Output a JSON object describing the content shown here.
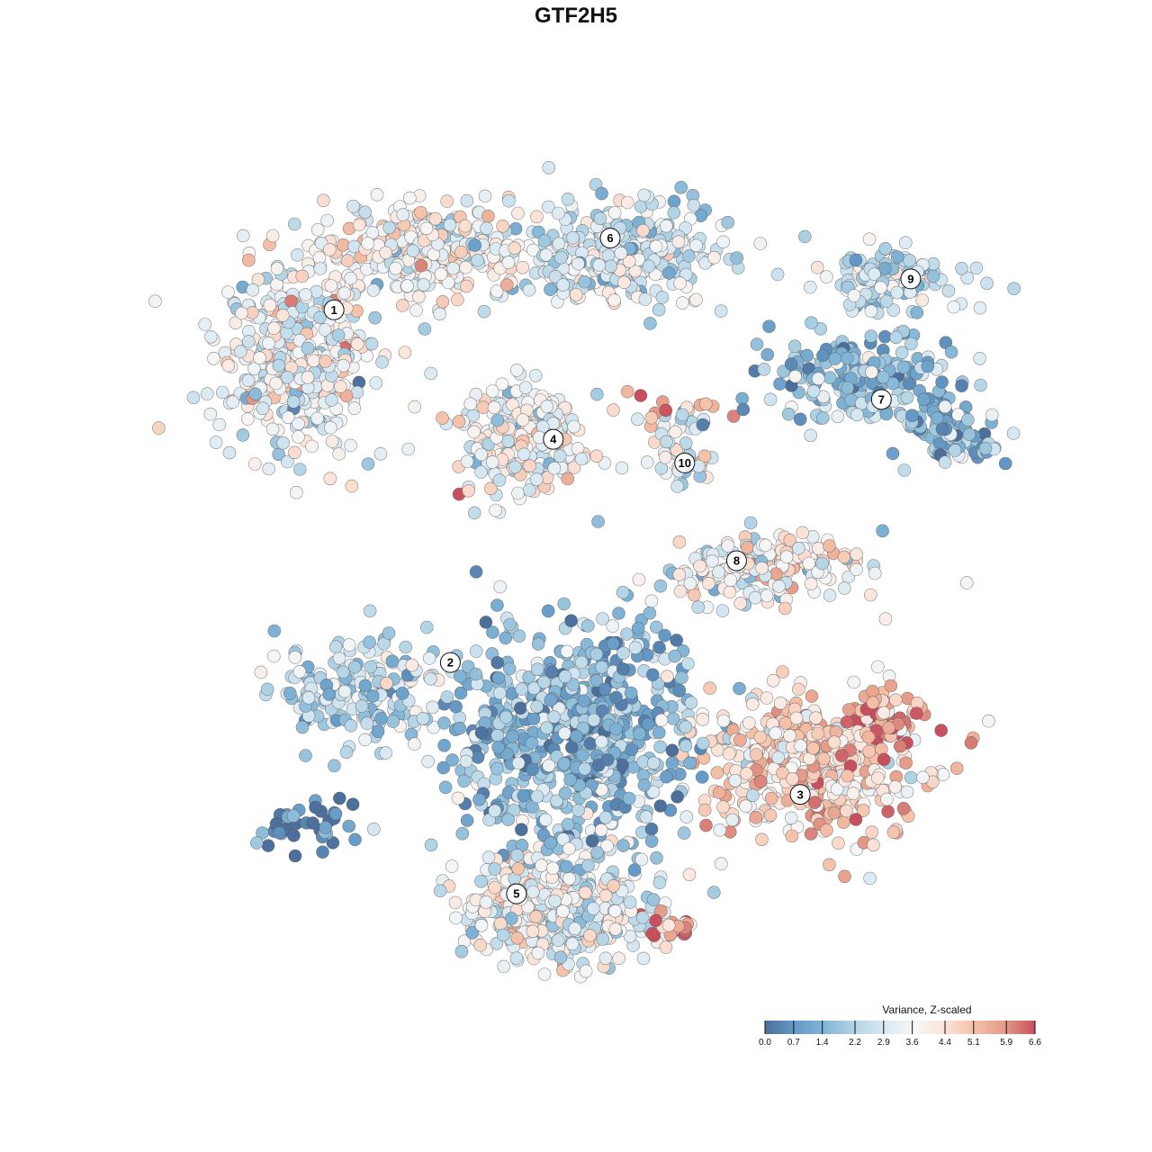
{
  "chart_data": {
    "type": "scatter",
    "title": "GTF2H5",
    "xlabel": "",
    "ylabel": "",
    "xlim": [
      -50,
      50
    ],
    "ylim": [
      -50,
      50
    ],
    "grid": false,
    "legend": {
      "title": "Variance, Z-scaled",
      "position": "bottom-right",
      "range": [
        0,
        6.6
      ],
      "ticks": [
        "0.0",
        "0.7",
        "1.4",
        "2.2",
        "2.9",
        "3.6",
        "4.4",
        "5.1",
        "5.9",
        "6.6"
      ],
      "colors": [
        "#4d6f9c",
        "#6499c6",
        "#83b6d6",
        "#b4d5e6",
        "#dae9f2",
        "#f6f6f6",
        "#fbe3d8",
        "#f4bfa6",
        "#e49a87",
        "#c8505e"
      ]
    },
    "cluster_labels": [
      {
        "label": "1",
        "x": -31.6,
        "y": 32.4
      },
      {
        "label": "2",
        "x": -17.7,
        "y": -10.9
      },
      {
        "label": "3",
        "x": 24.1,
        "y": -27.1
      },
      {
        "label": "4",
        "x": -5.4,
        "y": 16.5
      },
      {
        "label": "5",
        "x": -9.8,
        "y": -39.3
      },
      {
        "label": "6",
        "x": 1.4,
        "y": 41.2
      },
      {
        "label": "7",
        "x": 33.8,
        "y": 21.4
      },
      {
        "label": "8",
        "x": 16.5,
        "y": 1.6
      },
      {
        "label": "9",
        "x": 37.3,
        "y": 36.2
      },
      {
        "label": "10",
        "x": 10.3,
        "y": 13.6
      }
    ],
    "point_groups": [
      {
        "cluster": "1",
        "x": -36,
        "y": 26.8,
        "sx": 6.5,
        "sy": 7.7,
        "mean": 3.4,
        "n": 420
      },
      {
        "cluster": "1",
        "x": -19.9,
        "y": 39.5,
        "sx": 7.5,
        "sy": 3.9,
        "mean": 3.6,
        "n": 320
      },
      {
        "cluster": "6",
        "x": 2.7,
        "y": 39.5,
        "sx": 8.6,
        "sy": 4.4,
        "mean": 2.8,
        "n": 320
      },
      {
        "cluster": "4",
        "x": -9.1,
        "y": 16.3,
        "sx": 4.8,
        "sy": 4.4,
        "mean": 3.5,
        "n": 260
      },
      {
        "cluster": "9",
        "x": 35,
        "y": 36.2,
        "sx": 5.9,
        "sy": 2.8,
        "mean": 2.7,
        "n": 110
      },
      {
        "cluster": "7",
        "x": 31.7,
        "y": 23.9,
        "sx": 7.5,
        "sy": 3.9,
        "mean": 1.8,
        "n": 200
      },
      {
        "cluster": "7",
        "x": 43,
        "y": 17.3,
        "sx": 3.8,
        "sy": 2.2,
        "mean": 1.6,
        "n": 90
      },
      {
        "cluster": "10",
        "x": 10.2,
        "y": 15.2,
        "sx": 2.7,
        "sy": 2.8,
        "mean": 2.8,
        "n": 50
      },
      {
        "cluster": "8",
        "x": 19.9,
        "y": 0.8,
        "sx": 7.5,
        "sy": 2.8,
        "mean": 3.6,
        "n": 200
      },
      {
        "cluster": "2",
        "x": -28.5,
        "y": -14.6,
        "sx": 6.5,
        "sy": 4.4,
        "mean": 2.4,
        "n": 180
      },
      {
        "cluster": "2",
        "x": -2.7,
        "y": -20.2,
        "sx": 9.7,
        "sy": 9.9,
        "mean": 1.6,
        "n": 700
      },
      {
        "cluster": "3",
        "x": 25.3,
        "y": -23.5,
        "sx": 8.6,
        "sy": 6.0,
        "mean": 4.6,
        "n": 420
      },
      {
        "cluster": "3",
        "x": 34.4,
        "y": -18,
        "sx": 3.2,
        "sy": 2.2,
        "mean": 5.8,
        "n": 60
      },
      {
        "cluster": "5",
        "x": -4.8,
        "y": -41.2,
        "sx": 7.5,
        "sy": 4.4,
        "mean": 3.3,
        "n": 420
      },
      {
        "cluster": "5",
        "x": 8.1,
        "y": -43.4,
        "sx": 2.2,
        "sy": 1.3,
        "mean": 5.9,
        "n": 30
      },
      {
        "cluster": "2",
        "x": -34.9,
        "y": -31.2,
        "sx": 3.8,
        "sy": 2.2,
        "mean": 0.3,
        "n": 40
      },
      {
        "cluster": "10",
        "x": 7.4,
        "y": 20.7,
        "sx": 5.4,
        "sy": 1.7,
        "mean": 5.5,
        "n": 14
      }
    ]
  }
}
